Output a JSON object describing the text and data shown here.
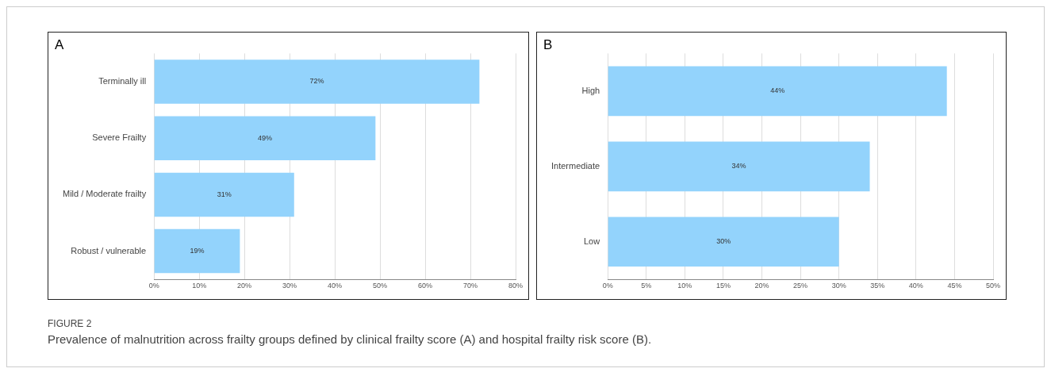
{
  "chart_data": [
    {
      "type": "bar",
      "orientation": "horizontal",
      "title": "A",
      "categories": [
        "Terminally ill",
        "Severe Frailty",
        "Mild / Moderate frailty",
        "Robust / vulnerable"
      ],
      "values": [
        72,
        49,
        31,
        19
      ],
      "value_labels": [
        "72%",
        "49%",
        "31%",
        "19%"
      ],
      "color": "#93d3fc",
      "xlim": [
        0,
        80
      ],
      "xticks": [
        {
          "value": 0,
          "label": "0%"
        },
        {
          "value": 10,
          "label": "10%"
        },
        {
          "value": 20,
          "label": "20%"
        },
        {
          "value": 30,
          "label": "30%"
        },
        {
          "value": 40,
          "label": "40%"
        },
        {
          "value": 50,
          "label": "50%"
        },
        {
          "value": 60,
          "label": "60%"
        },
        {
          "value": 70,
          "label": "70%"
        },
        {
          "value": 80,
          "label": "80%"
        }
      ],
      "grid": "x",
      "legend": false
    },
    {
      "type": "bar",
      "orientation": "horizontal",
      "title": "B",
      "categories": [
        "High",
        "Intermediate",
        "Low"
      ],
      "values": [
        44,
        34,
        30
      ],
      "value_labels": [
        "44%",
        "34%",
        "30%"
      ],
      "color": "#93d3fc",
      "xlim": [
        0,
        50
      ],
      "xticks": [
        {
          "value": 0,
          "label": "0%"
        },
        {
          "value": 5,
          "label": "5%"
        },
        {
          "value": 10,
          "label": "10%"
        },
        {
          "value": 15,
          "label": "15%"
        },
        {
          "value": 20,
          "label": "20%"
        },
        {
          "value": 25,
          "label": "25%"
        },
        {
          "value": 30,
          "label": "30%"
        },
        {
          "value": 35,
          "label": "35%"
        },
        {
          "value": 40,
          "label": "40%"
        },
        {
          "value": 45,
          "label": "45%"
        },
        {
          "value": 50,
          "label": "50%"
        }
      ],
      "grid": "x",
      "legend": false,
      "annotations": [
        "FIGURE 2",
        "Prevalence of malnutrition across frailty groups defined by clinical frailty score (A) and hospital frailty risk score (B)."
      ]
    }
  ]
}
